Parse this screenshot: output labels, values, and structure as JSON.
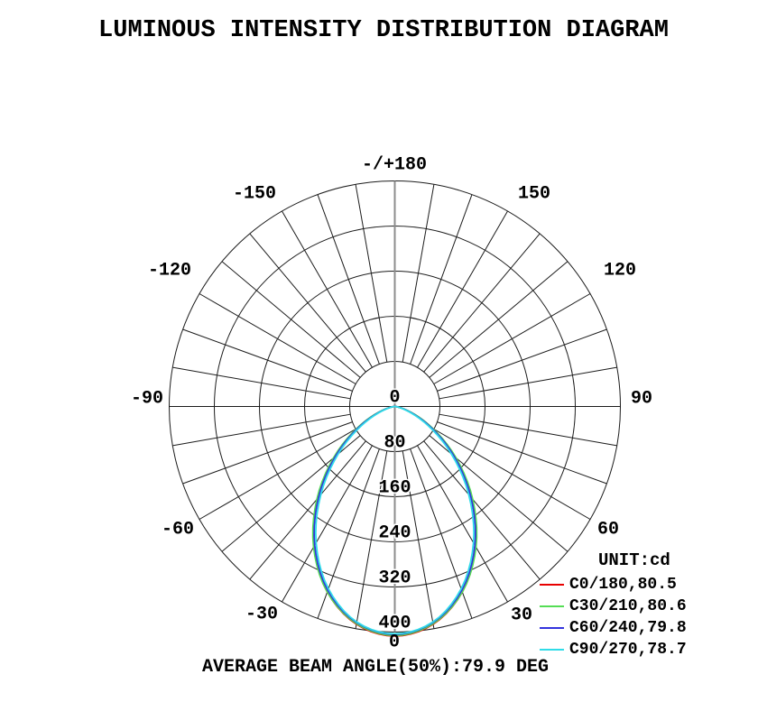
{
  "title": "LUMINOUS INTENSITY DISTRIBUTION DIAGRAM",
  "caption": "AVERAGE BEAM ANGLE(50%):79.9 DEG",
  "legend": {
    "unit_label": "UNIT:cd"
  },
  "chart_data": {
    "type": "polar_line",
    "title": "LUMINOUS INTENSITY DISTRIBUTION DIAGRAM",
    "unit": "cd",
    "orientation": "0-degrees-at-bottom",
    "radial_ticks": [
      0,
      80,
      160,
      240,
      320,
      400
    ],
    "radial_max": 400,
    "angle_grid_step_deg": 10,
    "angle_labels": [
      {
        "angle": 0,
        "label": "0"
      },
      {
        "angle": 30,
        "label": "30"
      },
      {
        "angle": -30,
        "label": "-30"
      },
      {
        "angle": 60,
        "label": "60"
      },
      {
        "angle": -60,
        "label": "-60"
      },
      {
        "angle": 90,
        "label": "90"
      },
      {
        "angle": -90,
        "label": "-90"
      },
      {
        "angle": 120,
        "label": "120"
      },
      {
        "angle": -120,
        "label": "-120"
      },
      {
        "angle": 150,
        "label": "150"
      },
      {
        "angle": -150,
        "label": "-150"
      },
      {
        "angle": 180,
        "label": "-/+180"
      }
    ],
    "average_beam_angle_50pct_deg": 79.9,
    "sample_angles_deg": [
      0,
      10,
      20,
      30,
      40,
      50,
      60,
      70,
      80,
      90
    ],
    "series": [
      {
        "plane": "C0/180",
        "beam_angle_deg": 80.5,
        "legend_label": "C0/180,80.5",
        "color": "#e80000",
        "symmetric": true,
        "intensities_cd": [
          407,
          392,
          350,
          287,
          214,
          140,
          76,
          30,
          6,
          0
        ]
      },
      {
        "plane": "C30/210",
        "beam_angle_deg": 80.6,
        "legend_label": "C30/210,80.6",
        "color": "#55dd55",
        "symmetric": true,
        "intensities_cd": [
          406,
          391,
          350,
          288,
          215,
          142,
          78,
          32,
          6,
          0
        ]
      },
      {
        "plane": "C60/240",
        "beam_angle_deg": 79.8,
        "legend_label": "C60/240,79.8",
        "color": "#3434dd",
        "symmetric": true,
        "intensities_cd": [
          404,
          389,
          347,
          284,
          210,
          137,
          74,
          29,
          6,
          0
        ]
      },
      {
        "plane": "C90/270",
        "beam_angle_deg": 78.7,
        "legend_label": "C90/270,78.7",
        "color": "#30dce8",
        "symmetric": true,
        "intensities_cd": [
          403,
          388,
          344,
          279,
          204,
          131,
          69,
          26,
          5,
          0
        ]
      }
    ]
  }
}
